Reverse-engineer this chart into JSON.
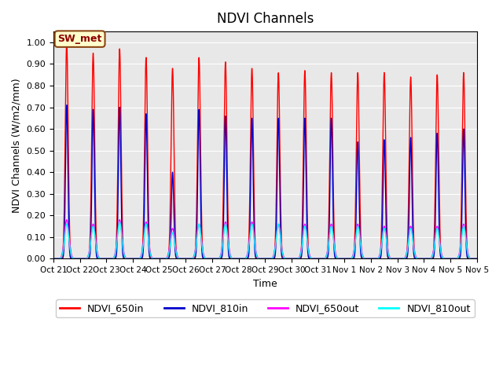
{
  "title": "NDVI Channels",
  "ylabel": "NDVI Channels (W/m2/mm)",
  "xlabel": "Time",
  "annotation": "SW_met",
  "ylim": [
    0.0,
    1.05
  ],
  "bg_color": "#e8e8e8",
  "line_colors": {
    "NDVI_650in": "#ff0000",
    "NDVI_810in": "#0000cc",
    "NDVI_650out": "#ff00ff",
    "NDVI_810out": "#00ffff"
  },
  "legend_labels": [
    "NDVI_650in",
    "NDVI_810in",
    "NDVI_650out",
    "NDVI_810out"
  ],
  "tick_labels": [
    "Oct 21",
    "Oct 22",
    "Oct 23",
    "Oct 24",
    "Oct 25",
    "Oct 26",
    "Oct 27",
    "Oct 28",
    "Oct 29",
    "Oct 30",
    "Oct 31",
    "Nov 1",
    "Nov 2",
    "Nov 3",
    "Nov 4",
    "Nov 5",
    "Nov 5"
  ],
  "peak_650in": [
    1.0,
    0.95,
    0.97,
    0.93,
    0.88,
    0.93,
    0.91,
    0.88,
    0.86,
    0.87,
    0.86,
    0.86,
    0.86,
    0.84,
    0.85,
    0.86
  ],
  "peak_810in": [
    0.71,
    0.69,
    0.7,
    0.67,
    0.4,
    0.69,
    0.66,
    0.65,
    0.65,
    0.65,
    0.65,
    0.54,
    0.55,
    0.56,
    0.58,
    0.6
  ],
  "peak_650out": [
    0.18,
    0.16,
    0.18,
    0.17,
    0.14,
    0.16,
    0.17,
    0.17,
    0.16,
    0.16,
    0.16,
    0.16,
    0.15,
    0.15,
    0.15,
    0.16
  ],
  "peak_810out": [
    0.16,
    0.15,
    0.17,
    0.16,
    0.12,
    0.16,
    0.16,
    0.16,
    0.16,
    0.15,
    0.15,
    0.15,
    0.14,
    0.14,
    0.14,
    0.15
  ],
  "n_points_per_day": 200,
  "n_days": 16,
  "figsize": [
    6.4,
    4.8
  ],
  "dpi": 100
}
